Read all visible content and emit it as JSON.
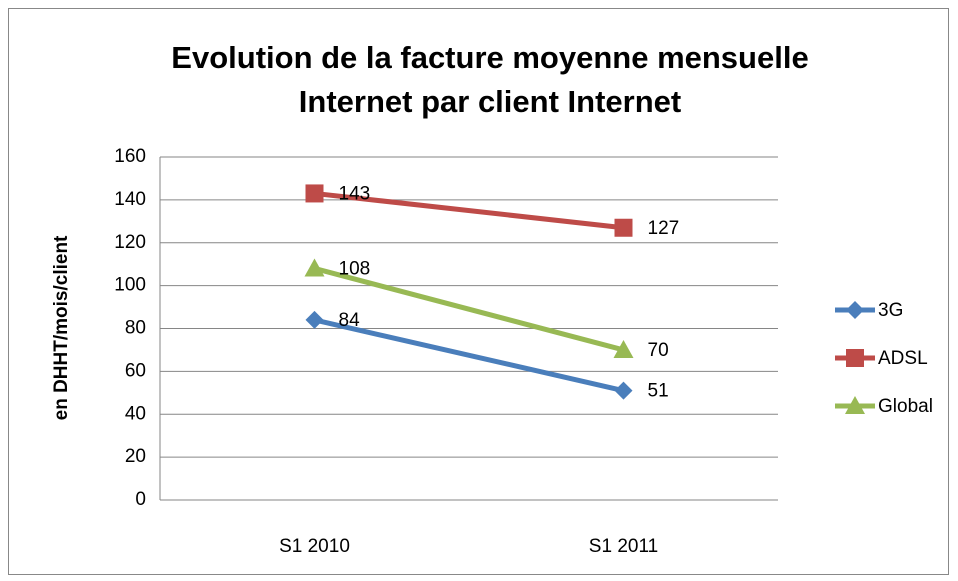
{
  "chart_data": {
    "type": "line",
    "title": [
      "Evolution de la facture moyenne mensuelle",
      "Internet par client Internet"
    ],
    "y_label": "en DHHT/mois/client",
    "categories": [
      "S1 2010",
      "S1 2011"
    ],
    "series": [
      {
        "name": "3G",
        "color": "#4a7ebb",
        "marker": "diamond",
        "values": [
          84,
          51
        ]
      },
      {
        "name": "ADSL",
        "color": "#be4b48",
        "marker": "square",
        "values": [
          143,
          127
        ]
      },
      {
        "name": "Global",
        "color": "#98b954",
        "marker": "triangle",
        "values": [
          108,
          70
        ]
      }
    ],
    "ylim": [
      0,
      160
    ],
    "yticks": [
      0,
      20,
      40,
      60,
      80,
      100,
      120,
      140,
      160
    ],
    "grid": true,
    "legend": "right",
    "data_labels": true
  }
}
